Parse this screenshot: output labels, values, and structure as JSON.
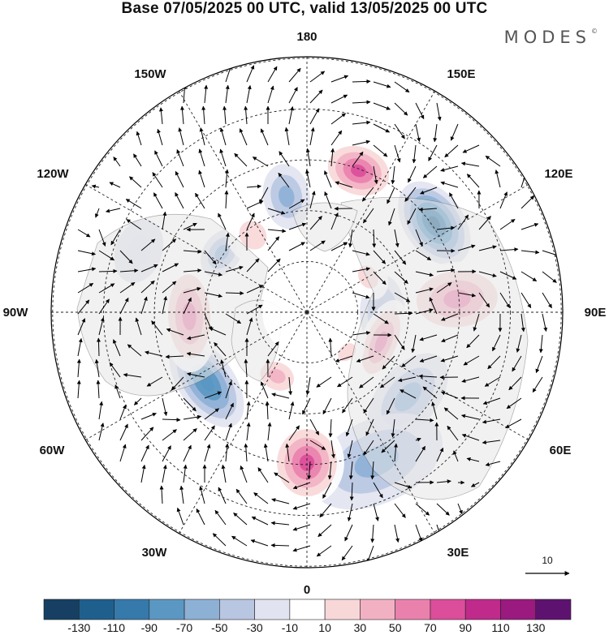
{
  "title": "Base 07/05/2025 00 UTC, valid 13/05/2025 00 UTC",
  "logo_text": "MODES",
  "logo_mark": "©",
  "longitude_labels": [
    "180",
    "150E",
    "120E",
    "90E",
    "60E",
    "30E",
    "0",
    "30W",
    "60W",
    "90W",
    "120W",
    "150W"
  ],
  "reference_vector": {
    "label": "10",
    "value": 10
  },
  "colorbar": {
    "labels": [
      "-130",
      "-110",
      "-90",
      "-70",
      "-50",
      "-30",
      "-10",
      "10",
      "30",
      "50",
      "70",
      "90",
      "110",
      "130"
    ],
    "colors": [
      "#163f63",
      "#1f5f8d",
      "#3679ab",
      "#5b97c3",
      "#8db0d5",
      "#b8c6e2",
      "#e1e3f0",
      "#ffffff",
      "#f8d7d8",
      "#f2b1c3",
      "#ea81ad",
      "#dc4d9a",
      "#bf2a8b",
      "#9a1a7f",
      "#5e1270"
    ]
  },
  "anomalies": [
    {
      "lon": 160,
      "colat": 32,
      "rx": 42,
      "ry": 32,
      "value": 95
    },
    {
      "lon": 125,
      "colat": 33,
      "rx": 50,
      "ry": 32,
      "value": -115
    },
    {
      "lon": 95,
      "colat": 32,
      "rx": 40,
      "ry": 58,
      "value": 70
    },
    {
      "lon": 90,
      "colat": 16,
      "rx": 40,
      "ry": 24,
      "value": -45
    },
    {
      "lon": 68,
      "colat": 17,
      "rx": 48,
      "ry": 22,
      "value": 75
    },
    {
      "lon": 50,
      "colat": 28,
      "rx": 55,
      "ry": 32,
      "value": -60
    },
    {
      "lon": 25,
      "colat": 35,
      "rx": 75,
      "ry": 45,
      "value": -50
    },
    {
      "lon": 0,
      "colat": 32,
      "rx": 40,
      "ry": 45,
      "value": 90
    },
    {
      "lon": -25,
      "colat": 15,
      "rx": 28,
      "ry": 22,
      "value": 55
    },
    {
      "lon": -55,
      "colat": 26,
      "rx": 55,
      "ry": 30,
      "value": -85
    },
    {
      "lon": -88,
      "colat": 25,
      "rx": 60,
      "ry": 30,
      "value": 80
    },
    {
      "lon": -125,
      "colat": 22,
      "rx": 28,
      "ry": 20,
      "value": -60
    },
    {
      "lon": -145,
      "colat": 20,
      "rx": 28,
      "ry": 32,
      "value": 35
    },
    {
      "lon": -170,
      "colat": 25,
      "rx": 25,
      "ry": 35,
      "value": -50
    },
    {
      "lon": 120,
      "colat": 15,
      "rx": 26,
      "ry": 20,
      "value": 25
    },
    {
      "lon": -110,
      "colat": 38,
      "rx": 35,
      "ry": 25,
      "value": -25
    },
    {
      "lon": 45,
      "colat": 12,
      "rx": 22,
      "ry": 16,
      "value": 25
    }
  ]
}
